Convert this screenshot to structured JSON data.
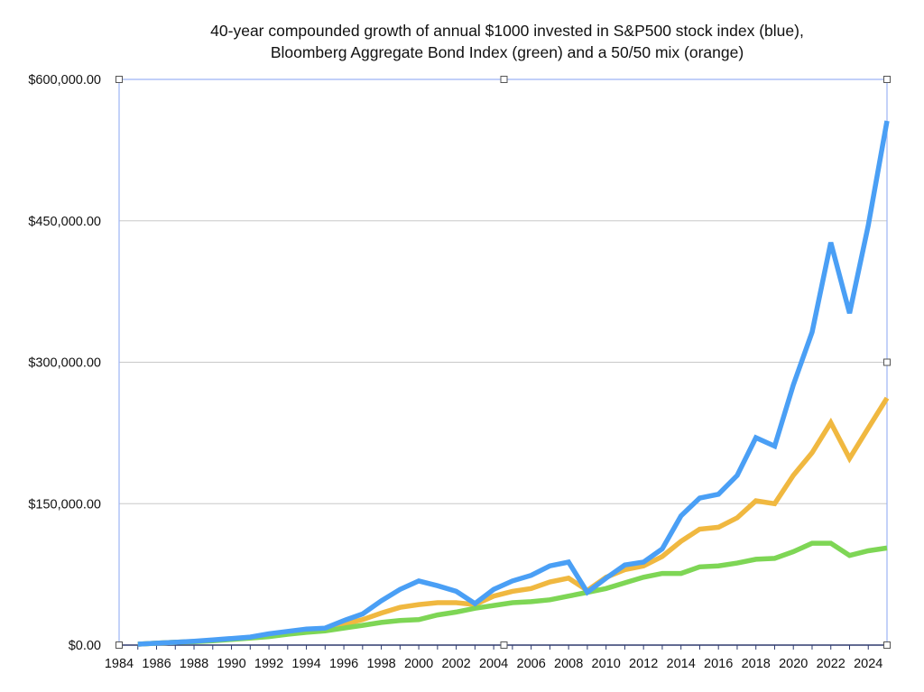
{
  "chart_data": {
    "type": "line",
    "title": "40-year compounded growth of annual $1000 invested in S&P500 stock index (blue), Bloomberg Aggregate Bond Index (green) and a 50/50 mix (orange)",
    "title_lines": [
      "40-year compounded growth of annual $1000 invested in S&P500 stock index (blue),",
      "Bloomberg Aggregate Bond Index (green) and a 50/50 mix (orange)"
    ],
    "xlabel": "",
    "ylabel": "",
    "ylim": [
      0,
      600000
    ],
    "grid": true,
    "legend": "none",
    "y_ticks": [
      0,
      150000,
      300000,
      450000,
      600000
    ],
    "y_tick_labels": [
      "$0.00",
      "$150,000.00",
      "$300,000.00",
      "$450,000.00",
      "$600,000.00"
    ],
    "x_categories_start": 1984,
    "x_tick_labels": [
      "1984",
      "1986",
      "1988",
      "1990",
      "1992",
      "1994",
      "1996",
      "1998",
      "2000",
      "2002",
      "2004",
      "2006",
      "2008",
      "2010",
      "2012",
      "2014",
      "2016",
      "2018",
      "2020",
      "2022",
      "2024"
    ],
    "x": [
      1985,
      1986,
      1987,
      1988,
      1989,
      1990,
      1991,
      1992,
      1993,
      1994,
      1995,
      1996,
      1997,
      1998,
      1999,
      2000,
      2001,
      2002,
      2003,
      2004,
      2005,
      2006,
      2007,
      2008,
      2009,
      2010,
      2011,
      2012,
      2013,
      2014,
      2015,
      2016,
      2017,
      2018,
      2019,
      2020,
      2021,
      2022,
      2023,
      2024,
      2025
    ],
    "series": [
      {
        "name": "S&P500 stock index",
        "color": "#4A9FF5",
        "values": [
          1000,
          2000,
          3000,
          4000,
          5500,
          7000,
          8500,
          12000,
          14500,
          17000,
          18000,
          26000,
          33000,
          47000,
          59000,
          68000,
          63000,
          57000,
          44000,
          59000,
          68000,
          74000,
          84000,
          88000,
          56000,
          71000,
          85000,
          88000,
          102000,
          137000,
          156000,
          160000,
          180000,
          220000,
          211000,
          276000,
          332000,
          427000,
          352000,
          445000,
          556000
        ]
      },
      {
        "name": "50/50 mix",
        "color": "#F0B840",
        "values": [
          1000,
          2000,
          3000,
          3800,
          5000,
          6500,
          8000,
          10500,
          13000,
          15500,
          17000,
          22000,
          27000,
          34000,
          40000,
          43000,
          45000,
          45000,
          43000,
          52000,
          57000,
          60000,
          67000,
          71000,
          58000,
          72000,
          80000,
          84000,
          94000,
          110000,
          123000,
          125000,
          135000,
          153000,
          150000,
          180000,
          204000,
          236000,
          198000,
          230000,
          262000
        ]
      },
      {
        "name": "Bloomberg Aggregate Bond Index",
        "color": "#7ED655",
        "values": [
          1000,
          2000,
          3000,
          3600,
          4500,
          6000,
          7500,
          9000,
          11500,
          13500,
          15000,
          18000,
          21000,
          24000,
          26000,
          27000,
          32000,
          35000,
          39000,
          42000,
          45000,
          46000,
          48000,
          52000,
          56000,
          60000,
          66000,
          72000,
          76000,
          76000,
          83000,
          84000,
          87000,
          91000,
          92000,
          99000,
          108000,
          108000,
          95000,
          100000,
          103000
        ]
      }
    ]
  }
}
